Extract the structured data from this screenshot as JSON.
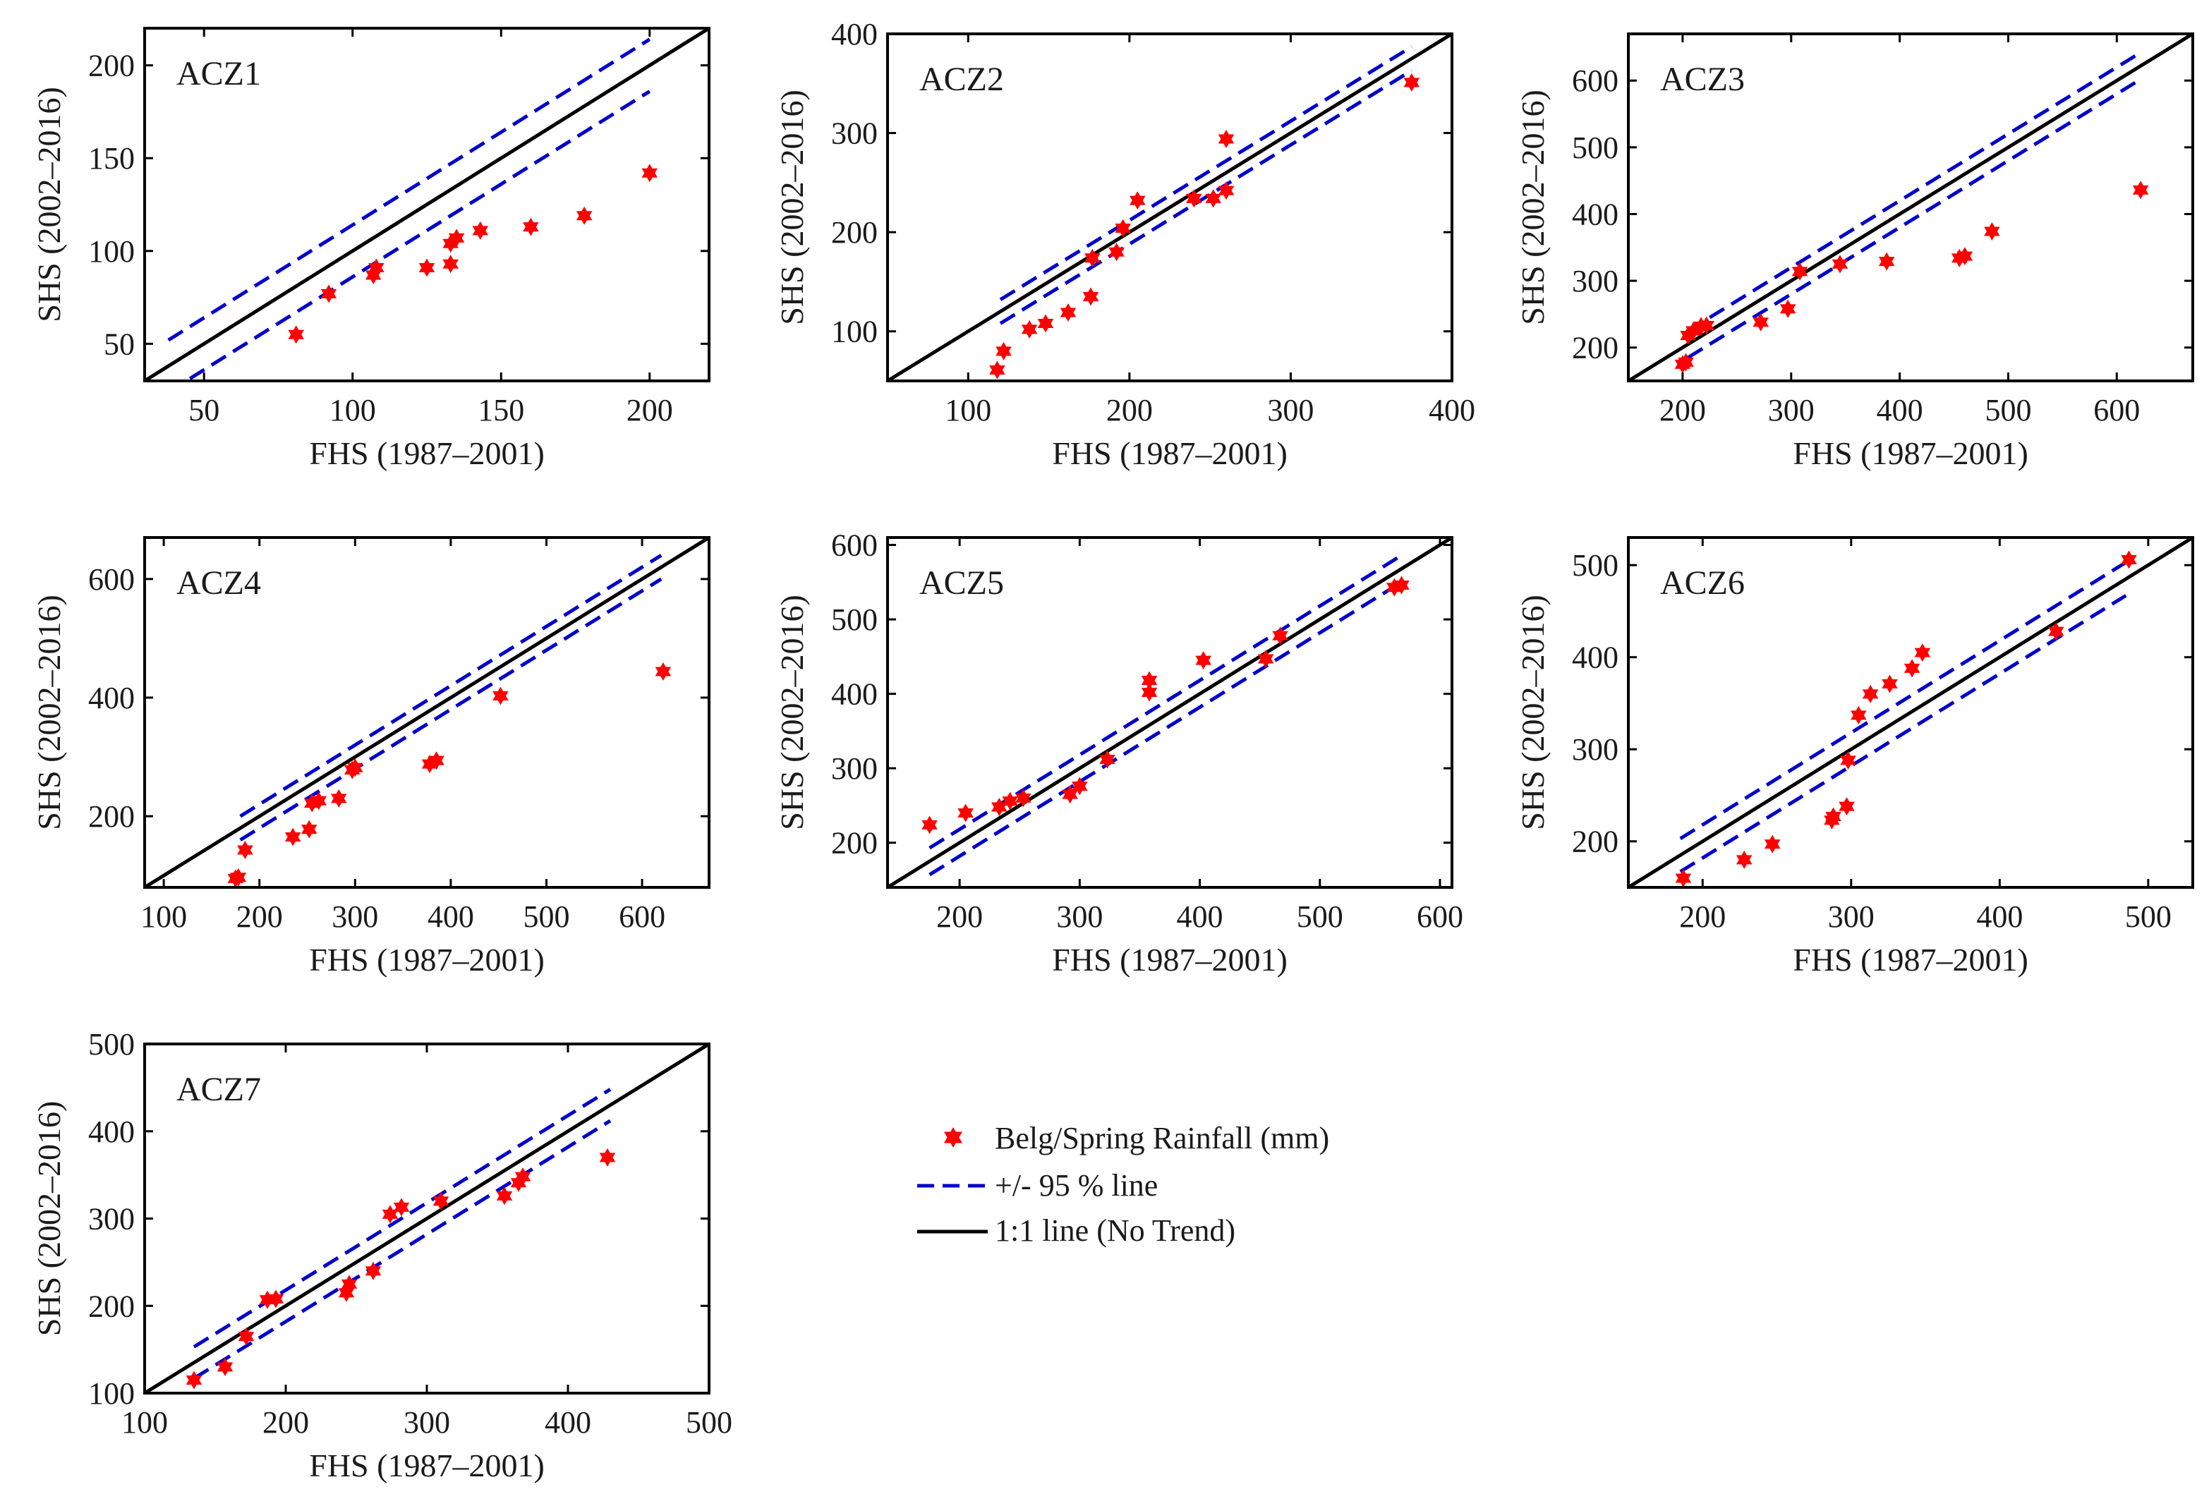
{
  "figure": {
    "legend": {
      "points_label": "Belg/Spring Rainfall (mm)",
      "ci_label": "+/- 95 % line",
      "one_to_one_label": "1:1 line (No Trend)"
    }
  },
  "colors": {
    "points": "#ff0000",
    "ci_line": "#0000cc",
    "one_to_one": "#000000",
    "frame": "#000000"
  },
  "chart_data": [
    {
      "type": "scatter",
      "title": "ACZ1",
      "xlabel": "FHS (1987–2001)",
      "ylabel": "SHS (2002–2016)",
      "xlim": [
        30,
        220
      ],
      "ylim": [
        30,
        220
      ],
      "xticks": [
        50,
        100,
        150,
        200
      ],
      "yticks": [
        50,
        100,
        150,
        200
      ],
      "ci_offset": 14,
      "ci_range": [
        38,
        200
      ],
      "points": [
        [
          81,
          55
        ],
        [
          92,
          77
        ],
        [
          107,
          87
        ],
        [
          108,
          91
        ],
        [
          125,
          91
        ],
        [
          133,
          93
        ],
        [
          133,
          104
        ],
        [
          135,
          107
        ],
        [
          143,
          111
        ],
        [
          160,
          113
        ],
        [
          178,
          119
        ],
        [
          200,
          142
        ]
      ]
    },
    {
      "type": "scatter",
      "title": "ACZ2",
      "xlabel": "FHS (1987–2001)",
      "ylabel": "SHS (2002–2016)",
      "xlim": [
        50,
        400
      ],
      "ylim": [
        50,
        400
      ],
      "xticks": [
        100,
        200,
        300,
        400
      ],
      "yticks": [
        100,
        200,
        300,
        400
      ],
      "ci_offset": 12,
      "ci_range": [
        120,
        375
      ],
      "points": [
        [
          118,
          61
        ],
        [
          122,
          80
        ],
        [
          138,
          102
        ],
        [
          148,
          108
        ],
        [
          162,
          119
        ],
        [
          176,
          135
        ],
        [
          177,
          174
        ],
        [
          192,
          180
        ],
        [
          196,
          204
        ],
        [
          205,
          232
        ],
        [
          240,
          234
        ],
        [
          252,
          234
        ],
        [
          260,
          242
        ],
        [
          260,
          294
        ],
        [
          375,
          351
        ]
      ]
    },
    {
      "type": "scatter",
      "title": "ACZ3",
      "xlabel": "FHS (1987–2001)",
      "ylabel": "SHS (2002–2016)",
      "xlim": [
        150,
        670
      ],
      "ylim": [
        150,
        670
      ],
      "xticks": [
        200,
        300,
        400,
        500,
        600
      ],
      "yticks": [
        200,
        300,
        400,
        500,
        600
      ],
      "ci_offset": 20,
      "ci_range": [
        205,
        620
      ],
      "points": [
        [
          200,
          175
        ],
        [
          203,
          178
        ],
        [
          205,
          218
        ],
        [
          210,
          225
        ],
        [
          217,
          232
        ],
        [
          222,
          233
        ],
        [
          272,
          238
        ],
        [
          297,
          258
        ],
        [
          308,
          314
        ],
        [
          345,
          325
        ],
        [
          388,
          329
        ],
        [
          455,
          334
        ],
        [
          460,
          337
        ],
        [
          485,
          374
        ],
        [
          622,
          436
        ]
      ]
    },
    {
      "type": "scatter",
      "title": "ACZ4",
      "xlabel": "FHS (1987–2001)",
      "ylabel": "SHS (2002–2016)",
      "xlim": [
        80,
        670
      ],
      "ylim": [
        80,
        670
      ],
      "xticks": [
        100,
        200,
        300,
        400,
        500,
        600
      ],
      "yticks": [
        200,
        400,
        600
      ],
      "ci_offset": 20,
      "ci_range": [
        180,
        620
      ],
      "points": [
        [
          175,
          95
        ],
        [
          178,
          97
        ],
        [
          185,
          143
        ],
        [
          235,
          165
        ],
        [
          252,
          178
        ],
        [
          255,
          222
        ],
        [
          262,
          226
        ],
        [
          283,
          230
        ],
        [
          297,
          278
        ],
        [
          300,
          282
        ],
        [
          378,
          288
        ],
        [
          385,
          294
        ],
        [
          452,
          403
        ],
        [
          622,
          444
        ]
      ]
    },
    {
      "type": "scatter",
      "title": "ACZ5",
      "xlabel": "FHS (1987–2001)",
      "ylabel": "SHS (2002–2016)",
      "xlim": [
        140,
        610
      ],
      "ylim": [
        140,
        610
      ],
      "xticks": [
        200,
        300,
        400,
        500,
        600
      ],
      "yticks": [
        200,
        300,
        400,
        500,
        600
      ],
      "ci_offset": 18,
      "ci_range": [
        175,
        570
      ],
      "points": [
        [
          175,
          224
        ],
        [
          205,
          240
        ],
        [
          233,
          248
        ],
        [
          242,
          256
        ],
        [
          253,
          260
        ],
        [
          292,
          265
        ],
        [
          300,
          276
        ],
        [
          323,
          312
        ],
        [
          358,
          402
        ],
        [
          358,
          418
        ],
        [
          403,
          445
        ],
        [
          455,
          447
        ],
        [
          467,
          478
        ],
        [
          562,
          543
        ],
        [
          568,
          546
        ]
      ]
    },
    {
      "type": "scatter",
      "title": "ACZ6",
      "xlabel": "FHS (1987–2001)",
      "ylabel": "SHS (2002–2016)",
      "xlim": [
        150,
        530
      ],
      "ylim": [
        150,
        530
      ],
      "xticks": [
        200,
        300,
        400,
        500
      ],
      "yticks": [
        200,
        300,
        400,
        500
      ],
      "ci_offset": 18,
      "ci_range": [
        185,
        485
      ],
      "points": [
        [
          187,
          160
        ],
        [
          228,
          180
        ],
        [
          247,
          197
        ],
        [
          287,
          223
        ],
        [
          288,
          227
        ],
        [
          297,
          238
        ],
        [
          298,
          288
        ],
        [
          305,
          337
        ],
        [
          313,
          360
        ],
        [
          326,
          371
        ],
        [
          341,
          388
        ],
        [
          348,
          405
        ],
        [
          438,
          428
        ],
        [
          487,
          506
        ]
      ]
    },
    {
      "type": "scatter",
      "title": "ACZ7",
      "xlabel": "FHS (1987–2001)",
      "ylabel": "SHS (2002–2016)",
      "xlim": [
        100,
        500
      ],
      "ylim": [
        100,
        500
      ],
      "xticks": [
        100,
        200,
        300,
        400,
        500
      ],
      "yticks": [
        100,
        200,
        300,
        400,
        500
      ],
      "ci_offset": 18,
      "ci_range": [
        135,
        430
      ],
      "points": [
        [
          135,
          115
        ],
        [
          157,
          130
        ],
        [
          172,
          165
        ],
        [
          187,
          207
        ],
        [
          193,
          208
        ],
        [
          243,
          215
        ],
        [
          245,
          225
        ],
        [
          262,
          240
        ],
        [
          274,
          305
        ],
        [
          282,
          313
        ],
        [
          310,
          320
        ],
        [
          355,
          326
        ],
        [
          365,
          341
        ],
        [
          368,
          348
        ],
        [
          428,
          370
        ]
      ]
    }
  ]
}
